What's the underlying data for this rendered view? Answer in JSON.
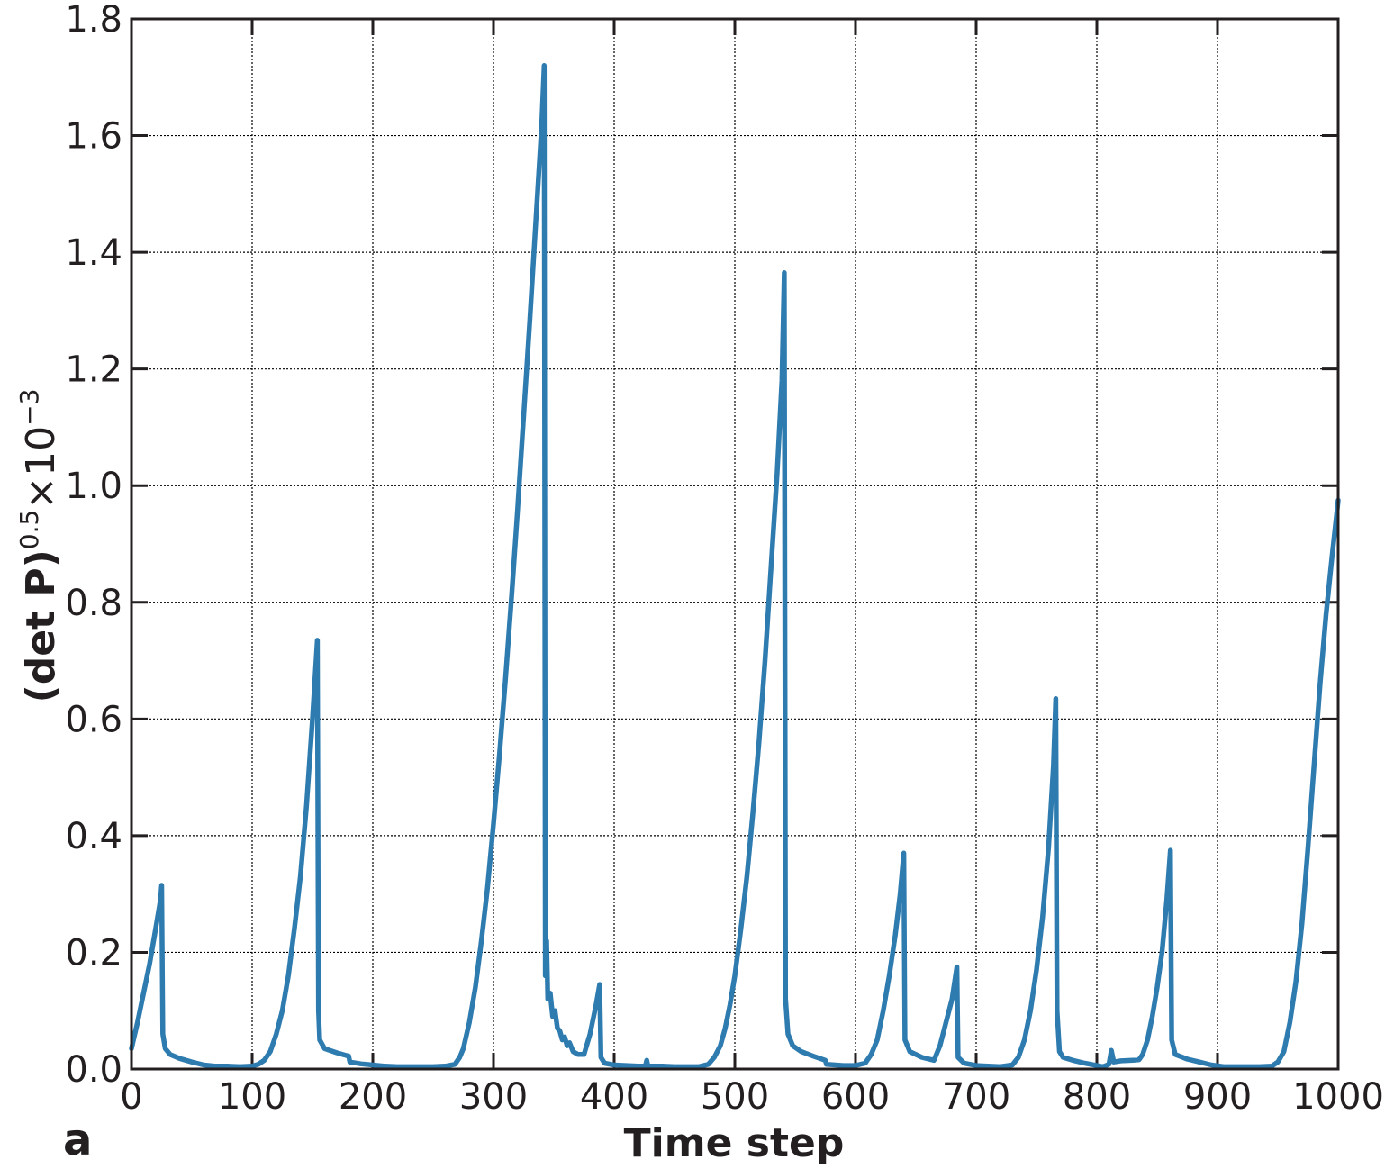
{
  "panel_label": "a",
  "chart_data": {
    "type": "line",
    "xlabel": "Time step",
    "ylabel_main": "(det P)",
    "ylabel_sup1": "0.5",
    "ylabel_times": "×10",
    "ylabel_sup2": "−3",
    "xlim": [
      0,
      1000
    ],
    "ylim": [
      0,
      1.8
    ],
    "xticks": [
      0,
      100,
      200,
      300,
      400,
      500,
      600,
      700,
      800,
      900,
      1000
    ],
    "xtick_labels": [
      "0",
      "100",
      "200",
      "300",
      "400",
      "500",
      "600",
      "700",
      "800",
      "900",
      "1000"
    ],
    "yticks": [
      0,
      0.2,
      0.4,
      0.6,
      0.8,
      1.0,
      1.2,
      1.4,
      1.6,
      1.8
    ],
    "ytick_labels": [
      "0.0",
      "0.2",
      "0.4",
      "0.6",
      "0.8",
      "1.0",
      "1.2",
      "1.4",
      "1.6",
      "1.8"
    ],
    "grid": true,
    "line_color": "#2e7bb0",
    "axis_color": "#231f20",
    "series": [
      {
        "points": [
          [
            0,
            0.035
          ],
          [
            5,
            0.08
          ],
          [
            10,
            0.13
          ],
          [
            15,
            0.18
          ],
          [
            20,
            0.24
          ],
          [
            24,
            0.29
          ],
          [
            25,
            0.315
          ],
          [
            26,
            0.06
          ],
          [
            28,
            0.035
          ],
          [
            32,
            0.025
          ],
          [
            40,
            0.018
          ],
          [
            50,
            0.012
          ],
          [
            60,
            0.007
          ],
          [
            70,
            0.005
          ],
          [
            80,
            0.005
          ],
          [
            90,
            0.004
          ],
          [
            100,
            0.005
          ],
          [
            105,
            0.008
          ],
          [
            110,
            0.015
          ],
          [
            115,
            0.03
          ],
          [
            120,
            0.06
          ],
          [
            125,
            0.1
          ],
          [
            130,
            0.16
          ],
          [
            135,
            0.24
          ],
          [
            140,
            0.33
          ],
          [
            145,
            0.45
          ],
          [
            150,
            0.6
          ],
          [
            154,
            0.735
          ],
          [
            155,
            0.1
          ],
          [
            156,
            0.05
          ],
          [
            160,
            0.035
          ],
          [
            170,
            0.028
          ],
          [
            180,
            0.022
          ],
          [
            181,
            0.012
          ],
          [
            190,
            0.009
          ],
          [
            200,
            0.007
          ],
          [
            210,
            0.005
          ],
          [
            220,
            0.004
          ],
          [
            230,
            0.004
          ],
          [
            240,
            0.004
          ],
          [
            250,
            0.004
          ],
          [
            260,
            0.005
          ],
          [
            268,
            0.008
          ],
          [
            272,
            0.02
          ],
          [
            275,
            0.035
          ],
          [
            280,
            0.08
          ],
          [
            285,
            0.14
          ],
          [
            290,
            0.22
          ],
          [
            295,
            0.31
          ],
          [
            300,
            0.42
          ],
          [
            305,
            0.54
          ],
          [
            310,
            0.67
          ],
          [
            315,
            0.81
          ],
          [
            320,
            0.96
          ],
          [
            325,
            1.12
          ],
          [
            330,
            1.28
          ],
          [
            335,
            1.45
          ],
          [
            340,
            1.62
          ],
          [
            342,
            1.72
          ],
          [
            343,
            0.16
          ],
          [
            344,
            0.22
          ],
          [
            345,
            0.12
          ],
          [
            347,
            0.13
          ],
          [
            349,
            0.09
          ],
          [
            351,
            0.1
          ],
          [
            353,
            0.07
          ],
          [
            355,
            0.065
          ],
          [
            357,
            0.05
          ],
          [
            359,
            0.055
          ],
          [
            361,
            0.04
          ],
          [
            363,
            0.045
          ],
          [
            366,
            0.03
          ],
          [
            370,
            0.025
          ],
          [
            375,
            0.025
          ],
          [
            380,
            0.06
          ],
          [
            385,
            0.11
          ],
          [
            388,
            0.145
          ],
          [
            389,
            0.02
          ],
          [
            392,
            0.01
          ],
          [
            400,
            0.007
          ],
          [
            410,
            0.006
          ],
          [
            420,
            0.005
          ],
          [
            426,
            0.006
          ],
          [
            427,
            0.015
          ],
          [
            428,
            0.005
          ],
          [
            440,
            0.005
          ],
          [
            450,
            0.004
          ],
          [
            460,
            0.004
          ],
          [
            470,
            0.004
          ],
          [
            478,
            0.008
          ],
          [
            483,
            0.02
          ],
          [
            488,
            0.04
          ],
          [
            492,
            0.07
          ],
          [
            496,
            0.11
          ],
          [
            500,
            0.16
          ],
          [
            505,
            0.24
          ],
          [
            510,
            0.33
          ],
          [
            515,
            0.44
          ],
          [
            520,
            0.56
          ],
          [
            525,
            0.7
          ],
          [
            530,
            0.86
          ],
          [
            535,
            1.02
          ],
          [
            539,
            1.18
          ],
          [
            541,
            1.365
          ],
          [
            542,
            0.12
          ],
          [
            544,
            0.06
          ],
          [
            548,
            0.04
          ],
          [
            555,
            0.03
          ],
          [
            565,
            0.022
          ],
          [
            575,
            0.015
          ],
          [
            576,
            0.008
          ],
          [
            590,
            0.006
          ],
          [
            600,
            0.006
          ],
          [
            608,
            0.01
          ],
          [
            613,
            0.025
          ],
          [
            618,
            0.05
          ],
          [
            623,
            0.1
          ],
          [
            628,
            0.16
          ],
          [
            633,
            0.23
          ],
          [
            637,
            0.3
          ],
          [
            640,
            0.37
          ],
          [
            641,
            0.05
          ],
          [
            645,
            0.03
          ],
          [
            655,
            0.02
          ],
          [
            665,
            0.015
          ],
          [
            670,
            0.04
          ],
          [
            675,
            0.08
          ],
          [
            680,
            0.12
          ],
          [
            684,
            0.175
          ],
          [
            685,
            0.02
          ],
          [
            690,
            0.01
          ],
          [
            700,
            0.006
          ],
          [
            710,
            0.005
          ],
          [
            720,
            0.004
          ],
          [
            730,
            0.007
          ],
          [
            735,
            0.02
          ],
          [
            740,
            0.05
          ],
          [
            745,
            0.1
          ],
          [
            750,
            0.17
          ],
          [
            755,
            0.26
          ],
          [
            760,
            0.38
          ],
          [
            764,
            0.52
          ],
          [
            766,
            0.635
          ],
          [
            767,
            0.1
          ],
          [
            769,
            0.03
          ],
          [
            772,
            0.02
          ],
          [
            780,
            0.015
          ],
          [
            790,
            0.01
          ],
          [
            800,
            0.006
          ],
          [
            805,
            0.004
          ],
          [
            810,
            0.008
          ],
          [
            812,
            0.032
          ],
          [
            814,
            0.012
          ],
          [
            820,
            0.014
          ],
          [
            830,
            0.015
          ],
          [
            835,
            0.016
          ],
          [
            838,
            0.025
          ],
          [
            842,
            0.05
          ],
          [
            846,
            0.09
          ],
          [
            850,
            0.14
          ],
          [
            854,
            0.2
          ],
          [
            858,
            0.29
          ],
          [
            861,
            0.375
          ],
          [
            862,
            0.05
          ],
          [
            865,
            0.025
          ],
          [
            875,
            0.017
          ],
          [
            885,
            0.012
          ],
          [
            895,
            0.007
          ],
          [
            905,
            0.004
          ],
          [
            915,
            0.004
          ],
          [
            925,
            0.004
          ],
          [
            935,
            0.004
          ],
          [
            945,
            0.005
          ],
          [
            950,
            0.012
          ],
          [
            955,
            0.03
          ],
          [
            960,
            0.08
          ],
          [
            965,
            0.15
          ],
          [
            970,
            0.25
          ],
          [
            975,
            0.38
          ],
          [
            980,
            0.52
          ],
          [
            985,
            0.66
          ],
          [
            990,
            0.78
          ],
          [
            995,
            0.88
          ],
          [
            1000,
            0.975
          ]
        ]
      }
    ]
  }
}
